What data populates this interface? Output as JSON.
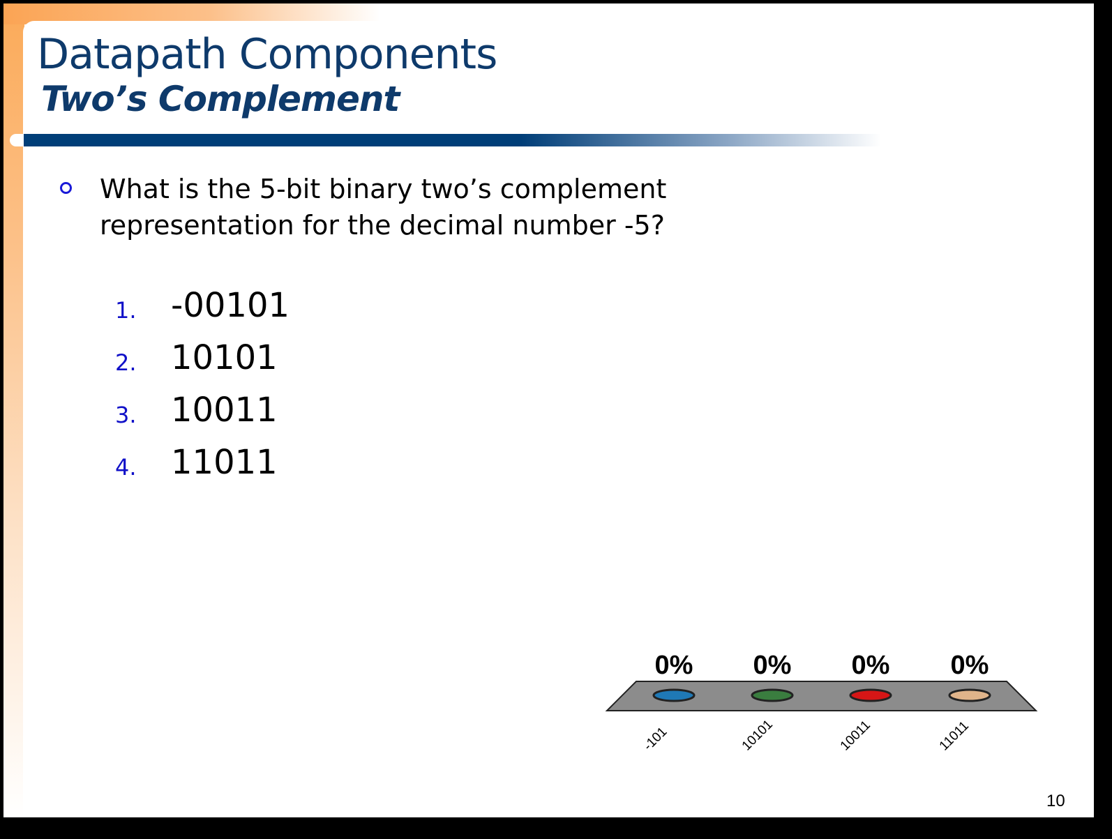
{
  "slide": {
    "title": "Datapath Components",
    "subtitle": "Two’s Complement",
    "question": "What is the 5-bit binary two’s complement representation for the decimal number -5?",
    "options": [
      {
        "number": "1.",
        "text": "-00101"
      },
      {
        "number": "2.",
        "text": "10101"
      },
      {
        "number": "3.",
        "text": "10011"
      },
      {
        "number": "4.",
        "text": "11011"
      }
    ],
    "page_number": "10"
  },
  "chart_data": {
    "type": "bar",
    "title": "",
    "categories": [
      "-101",
      "10101",
      "10011",
      "11011"
    ],
    "values": [
      0,
      0,
      0,
      0
    ],
    "value_labels": [
      "0%",
      "0%",
      "0%",
      "0%"
    ],
    "colors": [
      "#1f79b6",
      "#3a7d3f",
      "#d61616",
      "#e0b48a"
    ],
    "platform_color": "#8c8c8c",
    "ylim": [
      0,
      100
    ],
    "xlabel": "",
    "ylabel": ""
  }
}
